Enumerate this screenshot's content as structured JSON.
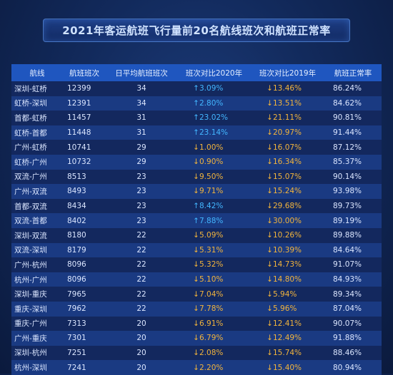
{
  "title": "2021年客运航班飞行量前20名航线班次和航班正常率",
  "headers": [
    "航线",
    "航班班次",
    "日平均航班班次",
    "班次对比2020年",
    "班次对比2019年",
    "航班正常率"
  ],
  "arrows": {
    "up": "↑",
    "down": "↓"
  },
  "colors": {
    "up": "#43b6ff",
    "down": "#f2b43c",
    "header_bg": "#1f56bf"
  },
  "rows": [
    {
      "route": "深圳-虹桥",
      "flights": "12399",
      "daily": "34",
      "vs2020": "3.09%",
      "vs2020_dir": "up",
      "vs2019": "13.46%",
      "vs2019_dir": "down",
      "rate": "86.24%"
    },
    {
      "route": "虹桥-深圳",
      "flights": "12391",
      "daily": "34",
      "vs2020": "2.80%",
      "vs2020_dir": "up",
      "vs2019": "13.51%",
      "vs2019_dir": "down",
      "rate": "84.62%"
    },
    {
      "route": "首都-虹桥",
      "flights": "11457",
      "daily": "31",
      "vs2020": "23.02%",
      "vs2020_dir": "up",
      "vs2019": "21.11%",
      "vs2019_dir": "down",
      "rate": "90.81%"
    },
    {
      "route": "虹桥-首都",
      "flights": "11448",
      "daily": "31",
      "vs2020": "23.14%",
      "vs2020_dir": "up",
      "vs2019": "20.97%",
      "vs2019_dir": "down",
      "rate": "91.44%"
    },
    {
      "route": "广州-虹桥",
      "flights": "10741",
      "daily": "29",
      "vs2020": "1.00%",
      "vs2020_dir": "down",
      "vs2019": "16.07%",
      "vs2019_dir": "down",
      "rate": "87.12%"
    },
    {
      "route": "虹桥-广州",
      "flights": "10732",
      "daily": "29",
      "vs2020": "0.90%",
      "vs2020_dir": "down",
      "vs2019": "16.34%",
      "vs2019_dir": "down",
      "rate": "85.37%"
    },
    {
      "route": "双流-广州",
      "flights": "8513",
      "daily": "23",
      "vs2020": "9.50%",
      "vs2020_dir": "down",
      "vs2019": "15.07%",
      "vs2019_dir": "down",
      "rate": "90.14%"
    },
    {
      "route": "广州-双流",
      "flights": "8493",
      "daily": "23",
      "vs2020": "9.71%",
      "vs2020_dir": "down",
      "vs2019": "15.24%",
      "vs2019_dir": "down",
      "rate": "93.98%"
    },
    {
      "route": "首都-双流",
      "flights": "8434",
      "daily": "23",
      "vs2020": "8.42%",
      "vs2020_dir": "up",
      "vs2019": "29.68%",
      "vs2019_dir": "down",
      "rate": "89.73%"
    },
    {
      "route": "双流-首都",
      "flights": "8402",
      "daily": "23",
      "vs2020": "7.88%",
      "vs2020_dir": "up",
      "vs2019": "30.00%",
      "vs2019_dir": "down",
      "rate": "89.19%"
    },
    {
      "route": "深圳-双流",
      "flights": "8180",
      "daily": "22",
      "vs2020": "5.09%",
      "vs2020_dir": "down",
      "vs2019": "10.26%",
      "vs2019_dir": "down",
      "rate": "89.88%"
    },
    {
      "route": "双流-深圳",
      "flights": "8179",
      "daily": "22",
      "vs2020": "5.31%",
      "vs2020_dir": "down",
      "vs2019": "10.39%",
      "vs2019_dir": "down",
      "rate": "84.64%"
    },
    {
      "route": "广州-杭州",
      "flights": "8096",
      "daily": "22",
      "vs2020": "5.32%",
      "vs2020_dir": "down",
      "vs2019": "14.73%",
      "vs2019_dir": "down",
      "rate": "91.07%"
    },
    {
      "route": "杭州-广州",
      "flights": "8096",
      "daily": "22",
      "vs2020": "5.10%",
      "vs2020_dir": "down",
      "vs2019": "14.80%",
      "vs2019_dir": "down",
      "rate": "84.93%"
    },
    {
      "route": "深圳-重庆",
      "flights": "7965",
      "daily": "22",
      "vs2020": "7.04%",
      "vs2020_dir": "down",
      "vs2019": "5.94%",
      "vs2019_dir": "down",
      "rate": "89.34%"
    },
    {
      "route": "重庆-深圳",
      "flights": "7962",
      "daily": "22",
      "vs2020": "7.78%",
      "vs2020_dir": "down",
      "vs2019": "5.96%",
      "vs2019_dir": "down",
      "rate": "87.04%"
    },
    {
      "route": "重庆-广州",
      "flights": "7313",
      "daily": "20",
      "vs2020": "6.91%",
      "vs2020_dir": "down",
      "vs2019": "12.41%",
      "vs2019_dir": "down",
      "rate": "90.07%"
    },
    {
      "route": "广州-重庆",
      "flights": "7301",
      "daily": "20",
      "vs2020": "6.79%",
      "vs2020_dir": "down",
      "vs2019": "12.49%",
      "vs2019_dir": "down",
      "rate": "91.88%"
    },
    {
      "route": "深圳-杭州",
      "flights": "7251",
      "daily": "20",
      "vs2020": "2.08%",
      "vs2020_dir": "down",
      "vs2019": "15.74%",
      "vs2019_dir": "down",
      "rate": "88.46%"
    },
    {
      "route": "杭州-深圳",
      "flights": "7241",
      "daily": "20",
      "vs2020": "2.20%",
      "vs2020_dir": "down",
      "vs2019": "15.40%",
      "vs2019_dir": "down",
      "rate": "80.94%"
    }
  ]
}
